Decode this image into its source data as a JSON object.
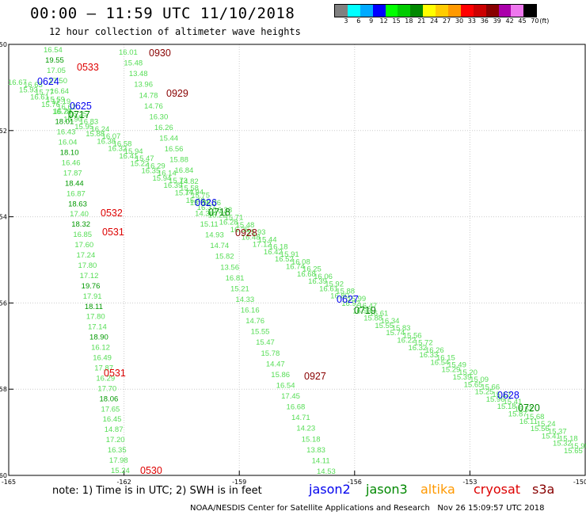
{
  "header": {
    "title": "00:00 – 11:59 UTC 11/10/2018",
    "subtitle": "12 hour collection of altimeter wave heights"
  },
  "legend": {
    "unit_label": "(ft)",
    "bins": [
      {
        "label": "3",
        "color": "#808080"
      },
      {
        "label": "6",
        "color": "#00ffff"
      },
      {
        "label": "9",
        "color": "#00aaff"
      },
      {
        "label": "12",
        "color": "#0000ff"
      },
      {
        "label": "15",
        "color": "#00ff00"
      },
      {
        "label": "18",
        "color": "#00cc00"
      },
      {
        "label": "21",
        "color": "#008800"
      },
      {
        "label": "24",
        "color": "#ffff00"
      },
      {
        "label": "27",
        "color": "#ffcc00"
      },
      {
        "label": "30",
        "color": "#ff9900"
      },
      {
        "label": "33",
        "color": "#ff0000"
      },
      {
        "label": "36",
        "color": "#cc0000"
      },
      {
        "label": "39",
        "color": "#880000"
      },
      {
        "label": "42",
        "color": "#aa00aa"
      },
      {
        "label": "45",
        "color": "#ee77ee"
      },
      {
        "label": "70",
        "color": "#000000"
      }
    ]
  },
  "map": {
    "lat_ticks": [
      "-50",
      "-52",
      "-54",
      "-56",
      "-58",
      "-60"
    ],
    "lon_ticks": [
      "-165",
      "-162",
      "-159",
      "-156",
      "-153",
      "-150"
    ],
    "grid_color": "#cccccc",
    "colors": {
      "swh_15_18": "#55dd55",
      "swh_18_21": "#009900",
      "jason2": "#0000ee",
      "jason3": "#008800",
      "cryosat": "#dd0000",
      "s3a": "#880000"
    }
  },
  "tracks": {
    "track_a": {
      "labels": [
        "16.54",
        "19.55",
        "17.05",
        "17.50",
        "16.64",
        "17.19",
        "16.24",
        "18.01",
        "16.43",
        "16.04",
        "18.10",
        "16.46",
        "17.87",
        "18.44",
        "16.87",
        "18.63",
        "17.40",
        "18.32",
        "16.85",
        "17.60",
        "17.24",
        "17.80",
        "17.12",
        "19.76",
        "17.91",
        "18.11",
        "17.80",
        "17.14",
        "18.90",
        "16.12",
        "16.49",
        "17.87",
        "16.29",
        "17.70",
        "18.06",
        "17.65",
        "16.45",
        "14.87",
        "17.20",
        "16.35",
        "17.98",
        "15.24"
      ],
      "times": [
        {
          "text": "0533",
          "sat": "cryosat"
        },
        {
          "text": "0532",
          "sat": "cryosat"
        },
        {
          "text": "0531",
          "sat": "cryosat"
        },
        {
          "text": "0531",
          "sat": "cryosat"
        },
        {
          "text": "0530",
          "sat": "cryosat"
        }
      ]
    },
    "track_b": {
      "labels": [
        "16.01",
        "15.48",
        "13.48",
        "13.96",
        "14.78",
        "14.76",
        "16.30",
        "16.26",
        "15.44",
        "16.56",
        "15.88",
        "16.84",
        "14.82",
        "14.94",
        "15.29",
        "14.38",
        "15.11",
        "14.93",
        "14.74",
        "15.82",
        "13.56",
        "16.81",
        "15.21",
        "14.33",
        "16.16",
        "14.76",
        "15.55",
        "15.47",
        "15.78",
        "14.47",
        "15.86",
        "16.54",
        "17.45",
        "16.68",
        "14.71",
        "14.23",
        "15.18",
        "13.83",
        "14.11",
        "14.53"
      ],
      "times": [
        {
          "text": "0930",
          "sat": "s3a"
        },
        {
          "text": "0929",
          "sat": "s3a"
        },
        {
          "text": "0928",
          "sat": "s3a"
        },
        {
          "text": "0927",
          "sat": "s3a"
        }
      ]
    },
    "track_c": {
      "labels": [
        "16.67",
        "15.93",
        "16.61",
        "15.76",
        "16.78",
        "15.90",
        "15.95",
        "15.88",
        "16.38",
        "16.32",
        "16.41",
        "15.22",
        "16.35",
        "15.94",
        "16.39",
        "15.77",
        "15.46",
        "16.37",
        "16.22",
        "16.28",
        "16.36",
        "16.48",
        "17.12",
        "16.42",
        "16.52",
        "16.74",
        "16.68",
        "16.39",
        "16.61",
        "16.80",
        "16.92",
        "16.93",
        "15.88",
        "15.55",
        "15.74",
        "16.22",
        "16.32",
        "16.33",
        "16.54",
        "15.29",
        "15.39",
        "15.65",
        "15.25",
        "15.96",
        "15.18",
        "15.87",
        "16.11",
        "15.56",
        "15.41",
        "15.32",
        "15.65"
      ],
      "times": [
        {
          "text": "0624",
          "sat": "jason2"
        },
        {
          "text": "0625",
          "sat": "jason2"
        },
        {
          "text": "0626",
          "sat": "jason2"
        },
        {
          "text": "0627",
          "sat": "jason2"
        },
        {
          "text": "0628",
          "sat": "jason2"
        }
      ]
    },
    "track_d": {
      "labels": [
        "16.63",
        "15.77",
        "15.59",
        "16.62",
        "16.25",
        "16.83",
        "16.24",
        "16.07",
        "16.58",
        "15.94",
        "15.47",
        "16.29",
        "16.14",
        "15.73",
        "15.58",
        "15.75",
        "16.36",
        "16.33",
        "15.71",
        "15.48",
        "15.93",
        "15.44",
        "16.18",
        "15.91",
        "16.08",
        "16.25",
        "16.06",
        "15.92",
        "15.88",
        "15.99",
        "16.47",
        "16.61",
        "16.34",
        "15.83",
        "15.56",
        "15.72",
        "16.26",
        "16.15",
        "15.49",
        "15.20",
        "15.09",
        "15.66",
        "15.12",
        "15.41",
        "15.52",
        "15.68",
        "15.24",
        "15.37",
        "15.18",
        "15.95"
      ],
      "times": [
        {
          "text": "0717",
          "sat": "jason3"
        },
        {
          "text": "0718",
          "sat": "jason3"
        },
        {
          "text": "0719",
          "sat": "jason3"
        },
        {
          "text": "0720",
          "sat": "jason3"
        }
      ]
    }
  },
  "footer": {
    "note": "note: 1) Time is in UTC; 2) SWH is in feet",
    "satellites": [
      {
        "name": "jason2",
        "color": "#0000ee"
      },
      {
        "name": "jason3",
        "color": "#008800"
      },
      {
        "name": "altika",
        "color": "#ff9900"
      },
      {
        "name": "cryosat",
        "color": "#dd0000"
      },
      {
        "name": "s3a",
        "color": "#880000"
      }
    ],
    "credit": "NOAA/NESDIS Center for Satellite Applications and Research   Nov 26 15:09:57 UTC 2018"
  }
}
